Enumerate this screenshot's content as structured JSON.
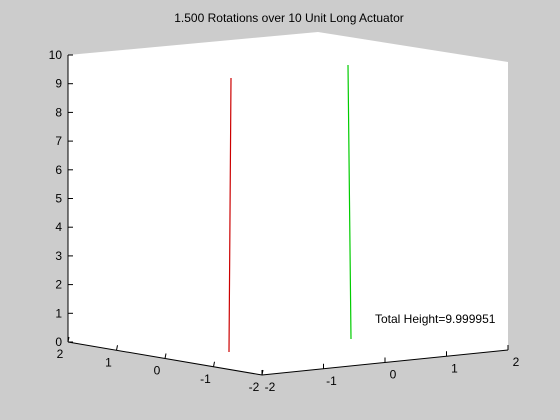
{
  "window": {
    "background": "#cccccc"
  },
  "chart_data": {
    "type": "line",
    "title": "1.500 Rotations over  10 Unit Long Actuator",
    "annotation": "Total Height=9.999951",
    "xlabel": "",
    "ylabel": "",
    "zlabel": "",
    "projection": "3d",
    "grid": false,
    "z_ticks": [
      "0",
      "1",
      "2",
      "3",
      "4",
      "5",
      "6",
      "7",
      "8",
      "9",
      "10"
    ],
    "z_range": [
      0,
      10
    ],
    "left_axis_ticks": [
      "2",
      "1",
      "0",
      "-1",
      "-2"
    ],
    "right_axis_ticks": [
      "-2",
      "-1",
      "0",
      "1",
      "2"
    ],
    "series": [
      {
        "color": "#cc0000",
        "bottom_z": 0,
        "top_z": 9.2
      },
      {
        "color": "#00cc00",
        "bottom_z": 0,
        "top_z": 9.7
      }
    ]
  }
}
